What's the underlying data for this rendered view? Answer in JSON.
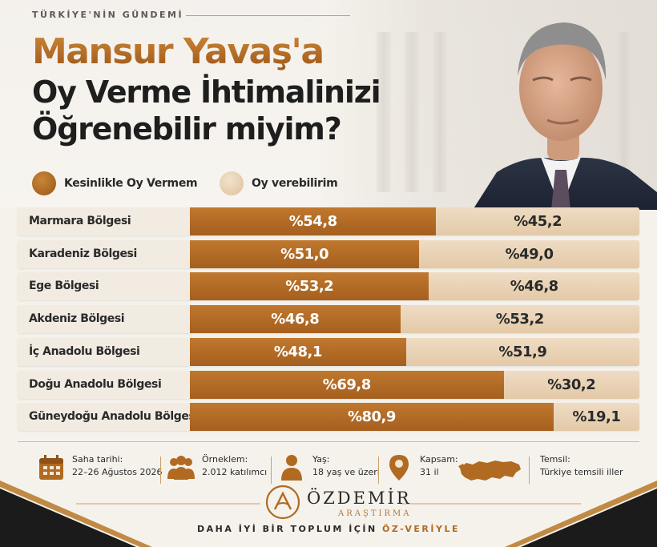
{
  "header": {
    "kicker": "TÜRKİYE'NİN GÜNDEMİ",
    "title_line1": "Mansur Yavaş'a",
    "title_line2": "Oy Verme İhtimalinizi",
    "title_line3": "Öğrenebilir miyim?"
  },
  "colors": {
    "series_a": "#b06a22",
    "series_b": "#ead6bb",
    "accent": "#c9a06a"
  },
  "chart_data": {
    "type": "bar",
    "orientation": "horizontal",
    "stacked": true,
    "value_prefix": "%",
    "xlim": [
      0,
      100
    ],
    "legend_placement": "top",
    "categories": [
      "Marmara Bölgesi",
      "Karadeniz Bölgesi",
      "Ege Bölgesi",
      "Akdeniz Bölgesi",
      "İç Anadolu Bölgesi",
      "Doğu Anadolu Bölgesi",
      "Güneydoğu Anadolu Bölgesi"
    ],
    "series": [
      {
        "name": "Kesinlikle Oy Vermem",
        "values": [
          54.8,
          51.0,
          53.2,
          46.8,
          48.1,
          69.8,
          80.9
        ],
        "labels": [
          "%54,8",
          "%51,0",
          "%53,2",
          "%46,8",
          "%48,1",
          "%69,8",
          "%80,9"
        ]
      },
      {
        "name": "Oy verebilirim",
        "values": [
          45.2,
          49.0,
          46.8,
          53.2,
          51.9,
          30.2,
          19.1
        ],
        "labels": [
          "%45,2",
          "%49,0",
          "%46,8",
          "%53,2",
          "%51,9",
          "%30,2",
          "%19,1"
        ]
      }
    ]
  },
  "info": {
    "date_title": "Saha tarihi:",
    "date_value": "22–26 Ağustos 2026",
    "sample_title": "Örneklem:",
    "sample_value": "2.012 katılımcı",
    "age_title": "Yaş:",
    "age_value": "18 yaş ve üzeri",
    "coverage_title": "Kapsam:",
    "coverage_value": "31 il",
    "representation_title": "Temsil:",
    "representation_value": "Türkiye temsili iller",
    "icons": [
      "calendar-icon",
      "people-icon",
      "person-icon",
      "location-pin-icon",
      "turkey-map-icon"
    ]
  },
  "brand": {
    "name": "ÖZDEMİR",
    "sub": "ARAŞTIRMA",
    "tagline_prefix": "DAHA İYİ BİR TOPLUM İÇİN",
    "tagline_accent": "ÖZ-VERİYLE"
  }
}
